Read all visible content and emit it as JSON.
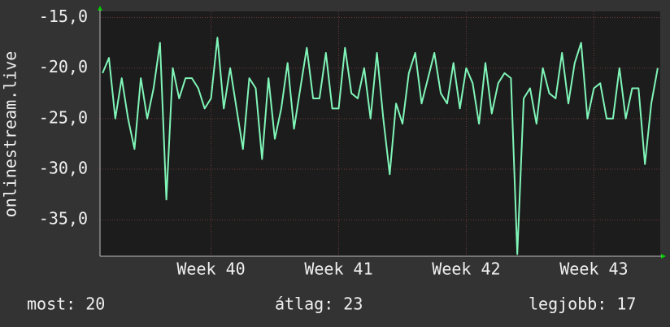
{
  "chart_data": {
    "type": "line",
    "y_label": "onlinestream.live",
    "x": [
      39.15,
      39.2,
      39.25,
      39.3,
      39.35,
      39.4,
      39.45,
      39.5,
      39.55,
      39.6,
      39.65,
      39.7,
      39.75,
      39.8,
      39.85,
      39.9,
      39.95,
      40.0,
      40.05,
      40.1,
      40.15,
      40.2,
      40.25,
      40.3,
      40.35,
      40.4,
      40.45,
      40.5,
      40.55,
      40.6,
      40.65,
      40.7,
      40.75,
      40.8,
      40.85,
      40.9,
      40.95,
      41.0,
      41.05,
      41.1,
      41.15,
      41.2,
      41.25,
      41.3,
      41.35,
      41.4,
      41.45,
      41.5,
      41.55,
      41.6,
      41.65,
      41.7,
      41.75,
      41.8,
      41.85,
      41.9,
      41.95,
      42.0,
      42.05,
      42.1,
      42.15,
      42.2,
      42.25,
      42.3,
      42.35,
      42.4,
      42.45,
      42.5,
      42.55,
      42.6,
      42.65,
      42.7,
      42.75,
      42.8,
      42.85,
      42.9,
      42.95,
      43.0,
      43.05,
      43.1,
      43.15,
      43.2,
      43.25,
      43.3,
      43.35,
      43.4,
      43.45,
      43.5
    ],
    "series": [
      {
        "color": "#80f5b8",
        "values": [
          -20.5,
          -19,
          -25,
          -21,
          -25,
          -28,
          -21,
          -25,
          -22,
          -17.5,
          -33,
          -20,
          -23,
          -21,
          -21,
          -22,
          -24,
          -23,
          -17,
          -24,
          -20,
          -24,
          -28,
          -21,
          -22,
          -29,
          -21,
          -27,
          -24,
          -19.5,
          -26,
          -22,
          -18,
          -23,
          -23,
          -18.5,
          -24,
          -24,
          -18,
          -22.5,
          -23,
          -20,
          -25,
          -18.5,
          -25,
          -30.5,
          -23.5,
          -25.5,
          -20.5,
          -18.5,
          -23.5,
          -21,
          -18.5,
          -22.5,
          -23.5,
          -19.5,
          -24,
          -20,
          -21.5,
          -25.5,
          -19.5,
          -24.5,
          -21.5,
          -20.5,
          -21,
          -38.4,
          -23,
          -22,
          -25.5,
          -20,
          -22.5,
          -23,
          -18.5,
          -23.5,
          -19.5,
          -17.5,
          -25,
          -22,
          -21.5,
          -25,
          -25,
          -20,
          -25,
          -22,
          -22,
          -29.5,
          -23.5,
          -20
        ]
      }
    ],
    "xlim": [
      39.13,
      43.52
    ],
    "xticks": [
      {
        "value": 40,
        "label": "Week 40"
      },
      {
        "value": 41,
        "label": "Week 41"
      },
      {
        "value": 42,
        "label": "Week 42"
      },
      {
        "value": 43,
        "label": "Week 43"
      }
    ],
    "ylim": [
      -38.6,
      -14.4
    ],
    "yticks": [
      {
        "value": -35,
        "label": "-35,0"
      },
      {
        "value": -30,
        "label": "-30,0"
      },
      {
        "value": -25,
        "label": "-25,0"
      },
      {
        "value": -20,
        "label": "-20,0"
      },
      {
        "value": -15,
        "label": "-15,0"
      }
    ],
    "grid": true,
    "stats": [
      "most: 20",
      "átlag: 23",
      "legjobb: 17"
    ]
  }
}
